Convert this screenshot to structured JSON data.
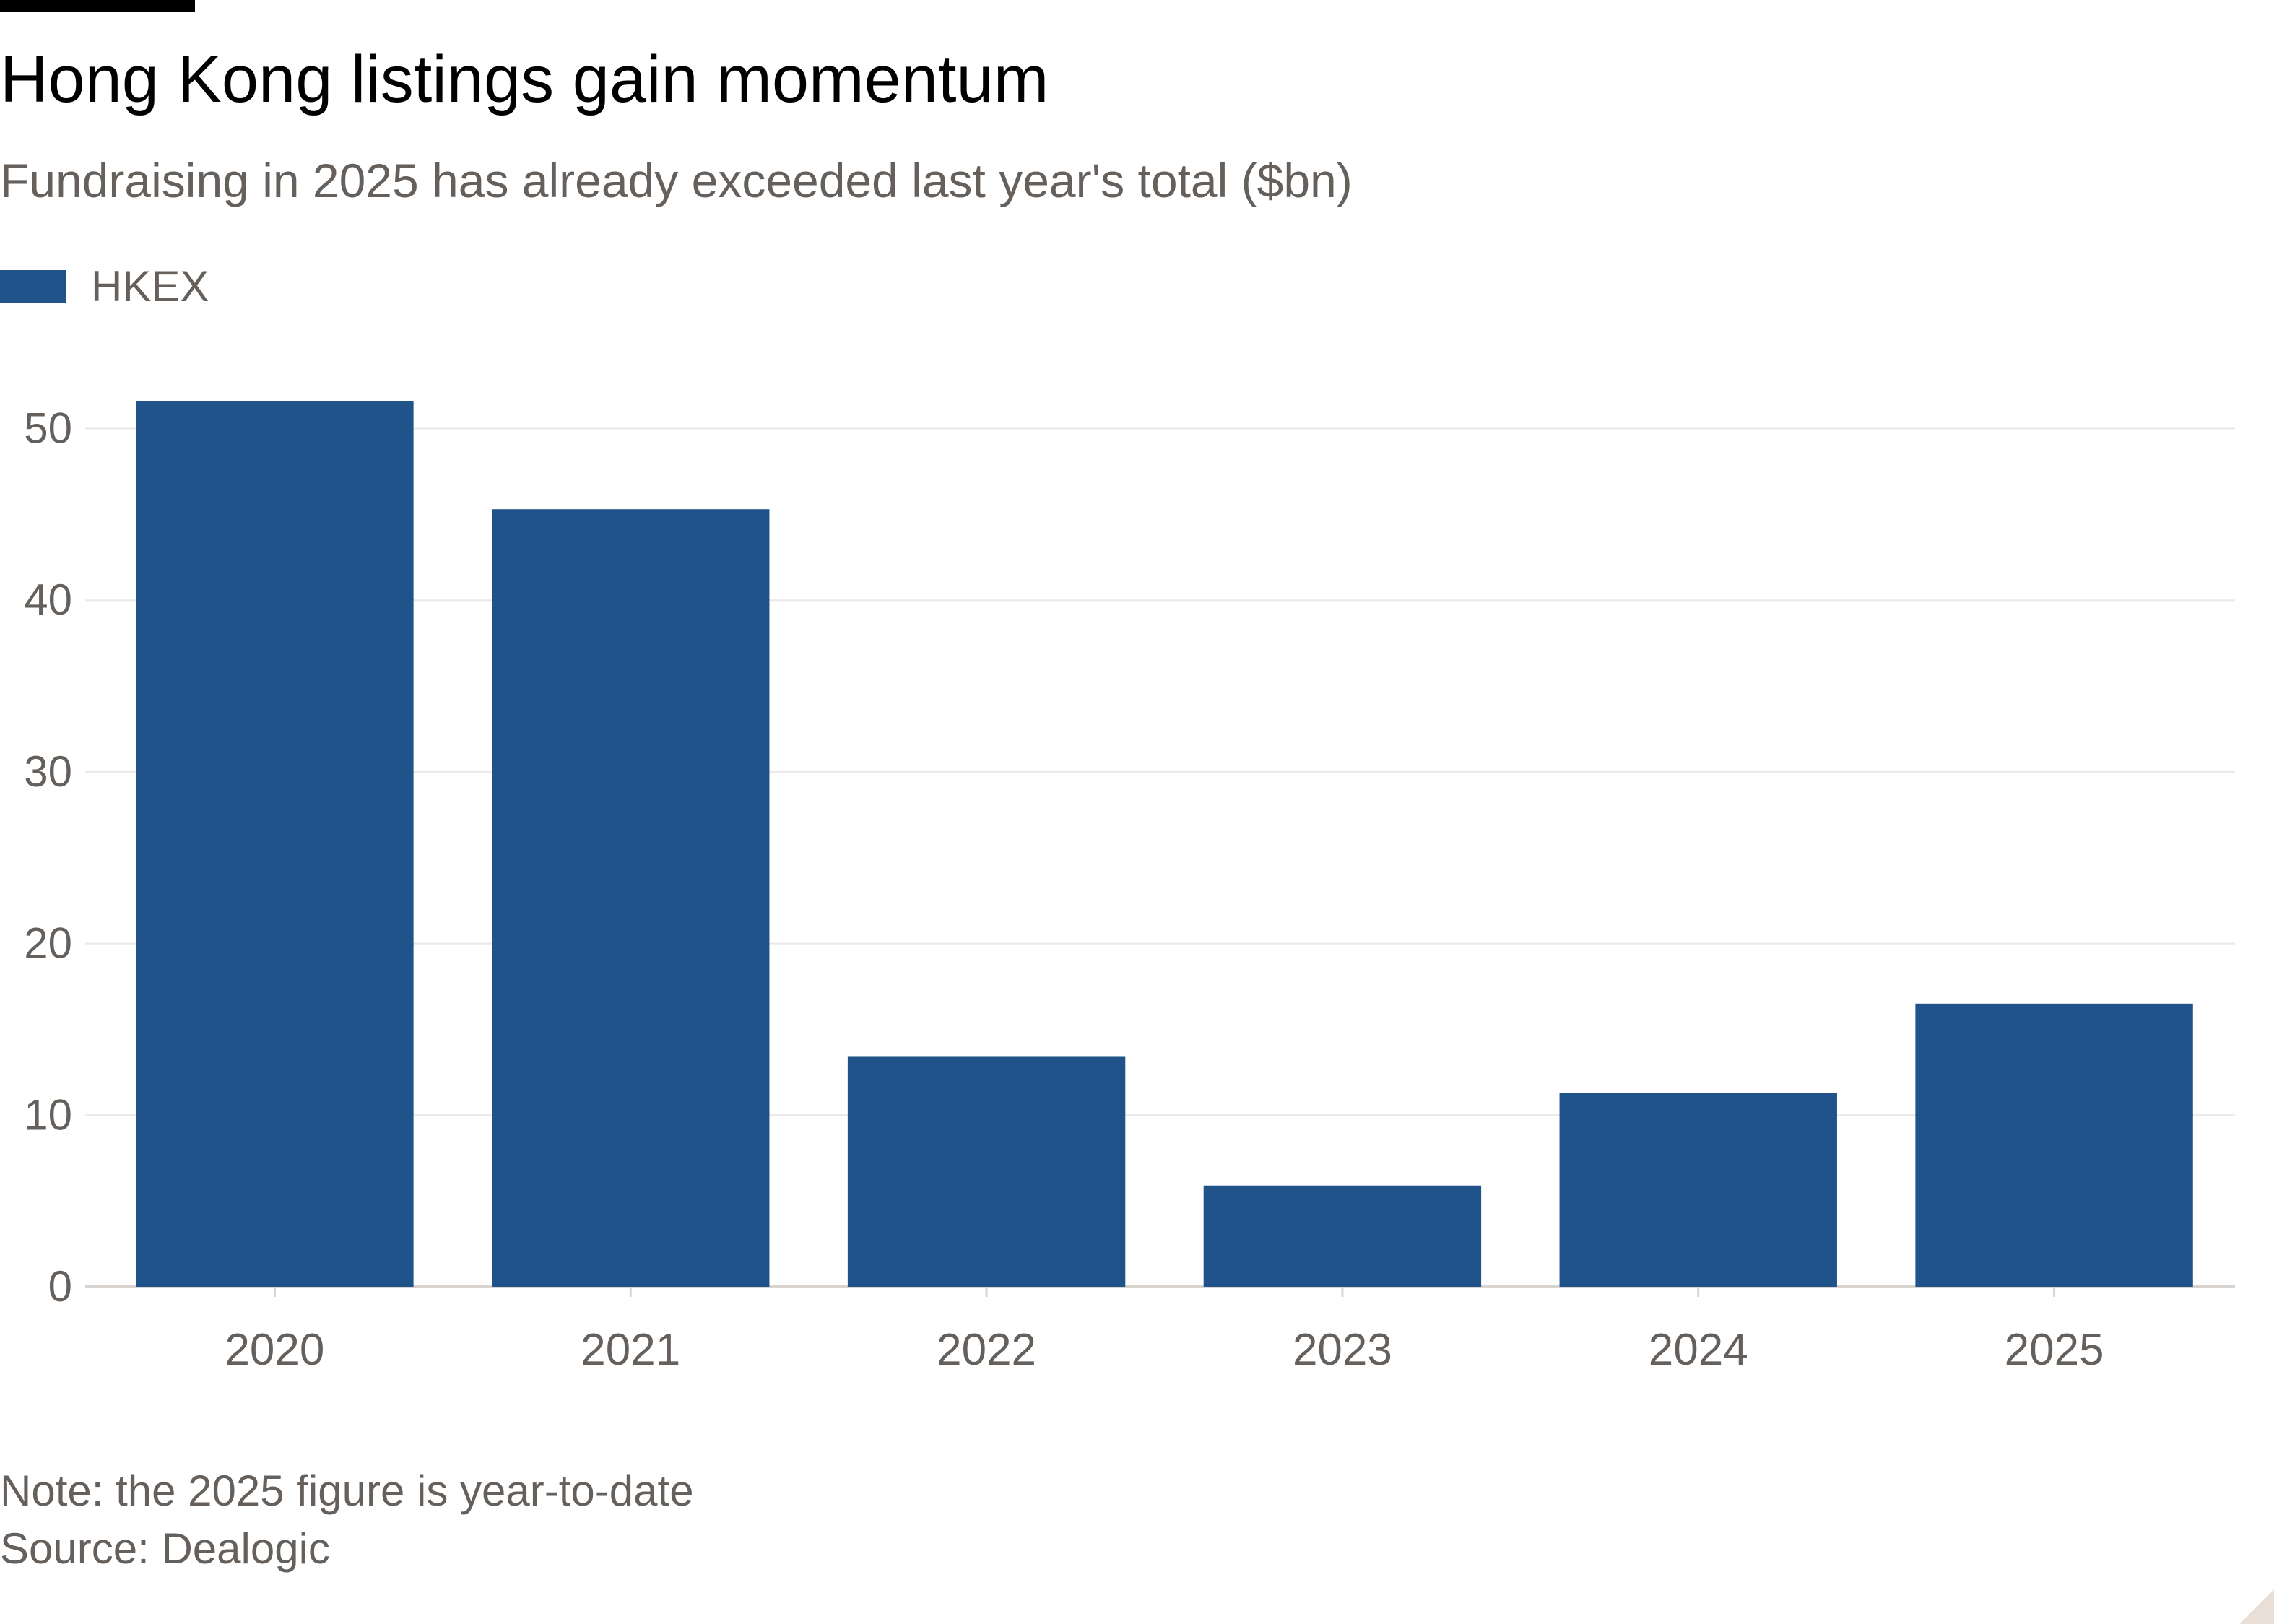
{
  "header": {
    "title": "Hong Kong listings gain momentum",
    "subtitle": "Fundraising in 2025 has already exceeded last year's total ($bn)"
  },
  "footer": {
    "note": "Note: the 2025 figure is year-to-date",
    "source": "Source: Dealogic"
  },
  "colors": {
    "bar": "#1f5389",
    "grid": "#ebe7e4",
    "axis": "#d9d4d0",
    "text": "#66605c"
  },
  "chart_data": {
    "type": "bar",
    "title": "Hong Kong listings gain momentum",
    "subtitle": "Fundraising in 2025 has already exceeded last year's total ($bn)",
    "xlabel": "",
    "ylabel": "",
    "categories": [
      "2020",
      "2021",
      "2022",
      "2023",
      "2024",
      "2025"
    ],
    "series": [
      {
        "name": "HKEX",
        "values": [
          51.6,
          45.3,
          13.4,
          5.9,
          11.3,
          16.5
        ]
      }
    ],
    "ylim": [
      0,
      53
    ],
    "yticks": [
      0,
      10,
      20,
      30,
      40,
      50
    ],
    "grid": true,
    "legend": "top-left"
  }
}
